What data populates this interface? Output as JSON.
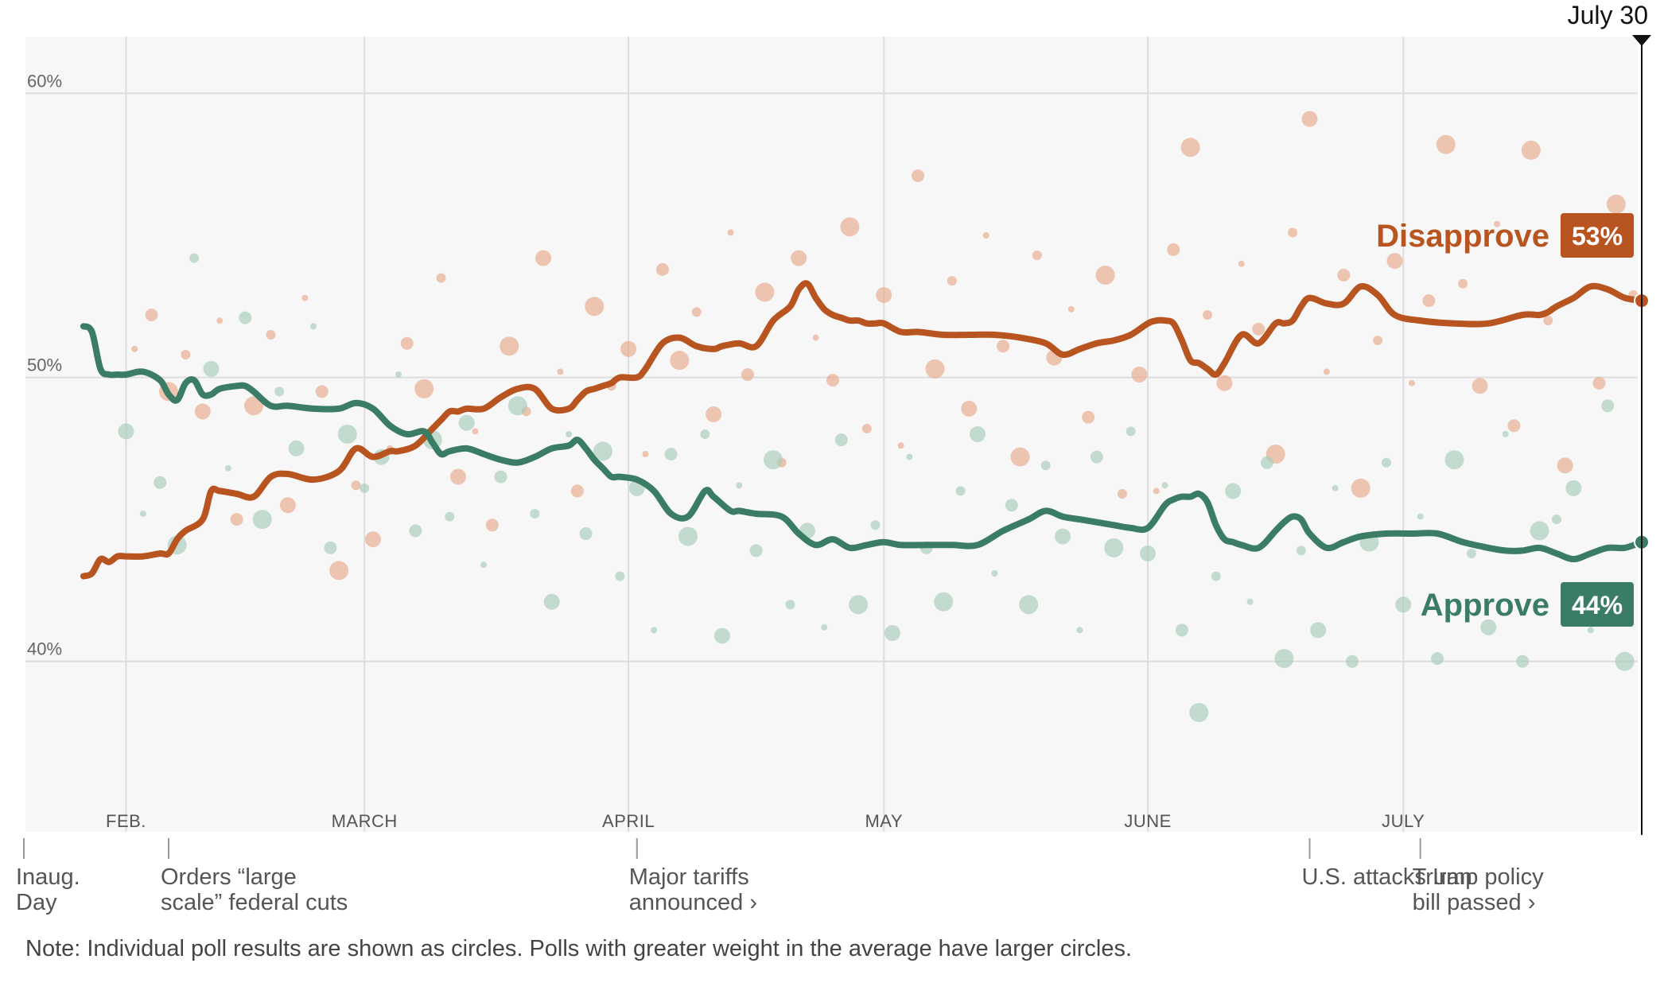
{
  "chart_data": {
    "type": "line",
    "title": "",
    "xlabel": "",
    "ylabel": "",
    "ylim": [
      34,
      62
    ],
    "y_ticks": [
      {
        "value": 40,
        "label": "40%"
      },
      {
        "value": 50,
        "label": "50%"
      },
      {
        "value": 60,
        "label": "60%"
      }
    ],
    "grid": true,
    "x_range_days": [
      0,
      190
    ],
    "current_date": {
      "day": 190,
      "label": "July 30"
    },
    "months": [
      {
        "day": 12,
        "label": "FEB."
      },
      {
        "day": 40,
        "label": "MARCH"
      },
      {
        "day": 71,
        "label": "APRIL"
      },
      {
        "day": 101,
        "label": "MAY"
      },
      {
        "day": 132,
        "label": "JUNE"
      },
      {
        "day": 162,
        "label": "JULY"
      }
    ],
    "events": [
      {
        "day": 0,
        "lines": [
          "Inaug.",
          "Day"
        ]
      },
      {
        "day": 17,
        "lines": [
          "Orders “large",
          "scale” federal cuts"
        ]
      },
      {
        "day": 72,
        "lines": [
          "Major tariffs",
          "announced ›"
        ]
      },
      {
        "day": 151,
        "lines": [
          "U.S. attacks Iran"
        ]
      },
      {
        "day": 164,
        "lines": [
          "Trump policy",
          "bill passed ›"
        ]
      }
    ],
    "series": [
      {
        "name": "Disapprove",
        "final_label": "53%",
        "color": "#b8541f",
        "dot_color": "#e8a98a",
        "days": [
          7,
          8,
          9,
          10,
          11,
          12,
          14,
          16,
          17,
          18,
          19,
          21,
          22,
          23,
          25,
          27,
          29,
          31,
          34,
          37,
          39,
          41,
          43,
          44,
          46,
          48,
          49,
          50,
          51,
          52,
          54,
          56,
          58,
          60,
          62,
          64,
          65,
          66,
          67,
          68,
          69,
          70,
          72,
          73,
          75,
          77,
          79,
          81,
          82,
          84,
          86,
          88,
          90,
          91,
          92,
          93,
          94,
          95,
          96,
          97,
          98,
          99,
          100,
          101,
          103,
          105,
          108,
          111,
          114,
          117,
          120,
          122,
          124,
          126,
          128,
          130,
          132,
          133,
          134,
          135,
          136,
          137,
          138,
          139,
          140,
          141,
          143,
          145,
          147,
          148,
          149,
          150,
          151,
          153,
          155,
          157,
          159,
          161,
          164,
          168,
          172,
          176,
          178,
          179,
          180,
          182,
          184,
          186,
          188,
          190
        ],
        "values": [
          43,
          43.1,
          43.6,
          43.5,
          43.7,
          43.7,
          43.7,
          43.8,
          43.8,
          44.3,
          44.6,
          45.0,
          46.0,
          46.0,
          45.9,
          45.8,
          46.5,
          46.6,
          46.4,
          46.7,
          47.5,
          47.2,
          47.4,
          47.4,
          47.6,
          48.2,
          48.5,
          48.8,
          48.8,
          48.9,
          48.9,
          49.3,
          49.6,
          49.6,
          48.9,
          48.9,
          49.2,
          49.5,
          49.6,
          49.7,
          49.8,
          50.0,
          50.0,
          50.3,
          51.2,
          51.4,
          51.1,
          51.0,
          51.1,
          51.2,
          51.1,
          52.0,
          52.5,
          53.1,
          53.3,
          52.8,
          52.4,
          52.2,
          52.1,
          52.0,
          52.0,
          51.9,
          51.9,
          51.9,
          51.6,
          51.6,
          51.5,
          51.5,
          51.5,
          51.4,
          51.2,
          50.8,
          51.0,
          51.2,
          51.3,
          51.5,
          51.9,
          52.0,
          52.0,
          51.9,
          51.3,
          50.6,
          50.5,
          50.3,
          50.1,
          50.5,
          51.5,
          51.2,
          51.9,
          51.9,
          52.0,
          52.5,
          52.8,
          52.6,
          52.6,
          53.2,
          52.9,
          52.2,
          52.0,
          51.9,
          51.9,
          52.2,
          52.2,
          52.3,
          52.5,
          52.8,
          53.2,
          53.1,
          52.8,
          52.7
        ],
        "dots": [
          [
            13,
            51
          ],
          [
            15,
            52.2
          ],
          [
            17,
            49.5
          ],
          [
            19,
            50.8
          ],
          [
            21,
            48.8
          ],
          [
            23,
            52
          ],
          [
            25,
            45
          ],
          [
            27,
            49
          ],
          [
            29,
            51.5
          ],
          [
            31,
            45.5
          ],
          [
            33,
            52.8
          ],
          [
            35,
            49.5
          ],
          [
            37,
            43.2
          ],
          [
            39,
            46.2
          ],
          [
            41,
            44.3
          ],
          [
            43,
            47.5
          ],
          [
            45,
            51.2
          ],
          [
            47,
            49.6
          ],
          [
            49,
            53.5
          ],
          [
            51,
            46.5
          ],
          [
            53,
            48.1
          ],
          [
            55,
            44.8
          ],
          [
            57,
            51.1
          ],
          [
            59,
            48.8
          ],
          [
            61,
            54.2
          ],
          [
            63,
            50.2
          ],
          [
            65,
            46.0
          ],
          [
            67,
            52.5
          ],
          [
            69,
            49.7
          ],
          [
            71,
            51.0
          ],
          [
            73,
            47.3
          ],
          [
            75,
            53.8
          ],
          [
            77,
            50.6
          ],
          [
            79,
            52.3
          ],
          [
            81,
            48.7
          ],
          [
            83,
            55.1
          ],
          [
            85,
            50.1
          ],
          [
            87,
            53.0
          ],
          [
            89,
            47.0
          ],
          [
            91,
            54.2
          ],
          [
            93,
            51.4
          ],
          [
            95,
            49.9
          ],
          [
            97,
            55.3
          ],
          [
            99,
            48.2
          ],
          [
            101,
            52.9
          ],
          [
            103,
            47.6
          ],
          [
            105,
            57.1
          ],
          [
            107,
            50.3
          ],
          [
            109,
            53.4
          ],
          [
            111,
            48.9
          ],
          [
            113,
            55.0
          ],
          [
            115,
            51.1
          ],
          [
            117,
            47.2
          ],
          [
            119,
            54.3
          ],
          [
            121,
            50.7
          ],
          [
            123,
            52.4
          ],
          [
            125,
            48.6
          ],
          [
            127,
            53.6
          ],
          [
            129,
            45.9
          ],
          [
            131,
            50.1
          ],
          [
            133,
            46.0
          ],
          [
            135,
            54.5
          ],
          [
            137,
            58.1
          ],
          [
            139,
            52.2
          ],
          [
            141,
            49.8
          ],
          [
            143,
            54.0
          ],
          [
            145,
            51.7
          ],
          [
            147,
            47.3
          ],
          [
            149,
            55.1
          ],
          [
            151,
            59.1
          ],
          [
            153,
            50.2
          ],
          [
            155,
            53.6
          ],
          [
            157,
            46.1
          ],
          [
            159,
            51.3
          ],
          [
            161,
            54.1
          ],
          [
            163,
            49.8
          ],
          [
            165,
            52.7
          ],
          [
            167,
            58.2
          ],
          [
            169,
            53.3
          ],
          [
            171,
            49.7
          ],
          [
            173,
            55.4
          ],
          [
            175,
            48.3
          ],
          [
            177,
            58.0
          ],
          [
            179,
            52.0
          ],
          [
            181,
            46.9
          ],
          [
            183,
            55.2
          ],
          [
            185,
            49.8
          ],
          [
            187,
            56.1
          ],
          [
            189,
            52.9
          ]
        ]
      },
      {
        "name": "Approve",
        "final_label": "44%",
        "color": "#3a7d64",
        "dot_color": "#a6ccb9",
        "days": [
          7,
          8,
          9,
          10,
          11,
          12,
          14,
          16,
          17,
          18,
          19,
          20,
          21,
          22,
          23,
          25,
          26,
          27,
          29,
          31,
          34,
          37,
          39,
          41,
          43,
          45,
          47,
          48,
          49,
          50,
          52,
          54,
          56,
          58,
          60,
          62,
          64,
          65,
          66,
          67,
          68,
          69,
          70,
          72,
          74,
          76,
          78,
          80,
          81,
          83,
          84,
          86,
          89,
          91,
          93,
          95,
          97,
          99,
          101,
          103,
          106,
          109,
          112,
          115,
          118,
          120,
          122,
          124,
          126,
          128,
          130,
          132,
          134,
          135,
          136,
          137,
          138,
          139,
          140,
          141,
          142,
          143,
          145,
          147,
          148,
          149,
          150,
          151,
          153,
          155,
          157,
          160,
          163,
          166,
          169,
          172,
          174,
          176,
          178,
          180,
          182,
          184,
          186,
          188,
          190
        ],
        "values": [
          51.8,
          51.6,
          50.3,
          50.1,
          50.1,
          50.1,
          50.2,
          49.9,
          49.4,
          49.2,
          49.8,
          49.9,
          49.4,
          49.4,
          49.6,
          49.7,
          49.7,
          49.5,
          49.0,
          49.0,
          48.9,
          48.9,
          49.1,
          48.9,
          48.3,
          48.0,
          48.1,
          47.7,
          47.3,
          47.4,
          47.5,
          47.3,
          47.1,
          47.0,
          47.2,
          47.5,
          47.6,
          47.8,
          47.5,
          47.1,
          46.8,
          46.5,
          46.5,
          46.4,
          46.0,
          45.2,
          45.1,
          46.0,
          45.8,
          45.3,
          45.3,
          45.2,
          45.1,
          44.5,
          44.1,
          44.3,
          44.0,
          44.1,
          44.2,
          44.1,
          44.1,
          44.1,
          44.1,
          44.6,
          45.0,
          45.3,
          45.1,
          45.0,
          44.9,
          44.8,
          44.7,
          44.7,
          45.5,
          45.7,
          45.8,
          45.8,
          45.9,
          45.6,
          44.8,
          44.3,
          44.2,
          44.1,
          44.0,
          44.6,
          44.9,
          45.1,
          45.0,
          44.5,
          44.0,
          44.2,
          44.4,
          44.5,
          44.5,
          44.5,
          44.2,
          44.0,
          43.9,
          43.9,
          44.0,
          43.8,
          43.6,
          43.8,
          44.0,
          44.0,
          44.2
        ],
        "dots": [
          [
            12,
            48.1
          ],
          [
            14,
            45.2
          ],
          [
            16,
            46.3
          ],
          [
            18,
            44.1
          ],
          [
            20,
            54.2
          ],
          [
            22,
            50.3
          ],
          [
            24,
            46.8
          ],
          [
            26,
            52.1
          ],
          [
            28,
            45.0
          ],
          [
            30,
            49.5
          ],
          [
            32,
            47.5
          ],
          [
            34,
            51.8
          ],
          [
            36,
            44.0
          ],
          [
            38,
            48.0
          ],
          [
            40,
            46.1
          ],
          [
            42,
            47.2
          ],
          [
            44,
            50.1
          ],
          [
            46,
            44.6
          ],
          [
            48,
            47.8
          ],
          [
            50,
            45.1
          ],
          [
            52,
            48.4
          ],
          [
            54,
            43.4
          ],
          [
            56,
            46.5
          ],
          [
            58,
            49.0
          ],
          [
            60,
            45.2
          ],
          [
            62,
            42.1
          ],
          [
            64,
            48.0
          ],
          [
            66,
            44.5
          ],
          [
            68,
            47.4
          ],
          [
            70,
            43.0
          ],
          [
            72,
            46.1
          ],
          [
            74,
            41.1
          ],
          [
            76,
            47.3
          ],
          [
            78,
            44.4
          ],
          [
            80,
            48.0
          ],
          [
            82,
            40.9
          ],
          [
            84,
            46.2
          ],
          [
            86,
            43.9
          ],
          [
            88,
            47.1
          ],
          [
            90,
            42.0
          ],
          [
            92,
            44.6
          ],
          [
            94,
            41.2
          ],
          [
            96,
            47.8
          ],
          [
            98,
            42.0
          ],
          [
            100,
            44.8
          ],
          [
            102,
            41.0
          ],
          [
            104,
            47.2
          ],
          [
            106,
            44.0
          ],
          [
            108,
            42.1
          ],
          [
            110,
            46.0
          ],
          [
            112,
            48.0
          ],
          [
            114,
            43.1
          ],
          [
            116,
            45.5
          ],
          [
            118,
            42.0
          ],
          [
            120,
            46.9
          ],
          [
            122,
            44.4
          ],
          [
            124,
            41.1
          ],
          [
            126,
            47.2
          ],
          [
            128,
            44.0
          ],
          [
            130,
            48.1
          ],
          [
            132,
            43.8
          ],
          [
            134,
            46.2
          ],
          [
            136,
            41.1
          ],
          [
            138,
            38.2
          ],
          [
            140,
            43.0
          ],
          [
            142,
            46.0
          ],
          [
            144,
            42.1
          ],
          [
            146,
            47.0
          ],
          [
            148,
            40.1
          ],
          [
            150,
            43.9
          ],
          [
            152,
            41.1
          ],
          [
            154,
            46.1
          ],
          [
            156,
            40.0
          ],
          [
            158,
            44.2
          ],
          [
            160,
            47.0
          ],
          [
            162,
            42.0
          ],
          [
            164,
            45.1
          ],
          [
            166,
            40.1
          ],
          [
            168,
            47.1
          ],
          [
            170,
            43.8
          ],
          [
            172,
            41.2
          ],
          [
            174,
            48.0
          ],
          [
            176,
            40.0
          ],
          [
            178,
            44.6
          ],
          [
            180,
            45.0
          ],
          [
            182,
            46.1
          ],
          [
            184,
            41.1
          ],
          [
            186,
            49.0
          ],
          [
            188,
            40.0
          ]
        ]
      }
    ]
  },
  "note": "Note: Individual poll results are shown as circles. Polls with greater weight in the average have larger circles."
}
